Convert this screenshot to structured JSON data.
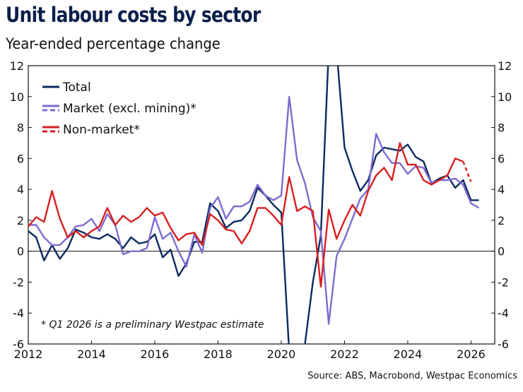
{
  "title": "Unit labour costs by sector",
  "subtitle": "Year-ended percentage change",
  "source": "Source: ABS, Macrobond, Westpac Economics",
  "chart_data": {
    "type": "line",
    "title": "Unit labour costs by sector",
    "subtitle": "Year-ended percentage change",
    "ylim": [
      -6,
      12
    ],
    "xlim": [
      2012,
      2026.75
    ],
    "yticks": [
      "-6",
      "-4",
      "-2",
      "0",
      "2",
      "4",
      "6",
      "8",
      "10",
      "12"
    ],
    "xticks": [
      "2012",
      "2014",
      "2016",
      "2018",
      "2020",
      "2022",
      "2024",
      "2026"
    ],
    "note": "* Q1 2026 is a preliminary Westpac estimate",
    "legend_position": "top-left",
    "series": [
      {
        "name": "Total",
        "color": "#0b2a5f",
        "points": [
          [
            2012.0,
            1.3
          ],
          [
            2012.25,
            0.9
          ],
          [
            2012.5,
            -0.6
          ],
          [
            2012.75,
            0.4
          ],
          [
            2013.0,
            -0.5
          ],
          [
            2013.25,
            0.2
          ],
          [
            2013.5,
            1.4
          ],
          [
            2013.75,
            1.2
          ],
          [
            2014.0,
            0.9
          ],
          [
            2014.25,
            0.8
          ],
          [
            2014.5,
            1.1
          ],
          [
            2014.75,
            0.8
          ],
          [
            2015.0,
            0.2
          ],
          [
            2015.25,
            0.9
          ],
          [
            2015.5,
            0.5
          ],
          [
            2015.75,
            0.6
          ],
          [
            2016.0,
            1.1
          ],
          [
            2016.25,
            -0.4
          ],
          [
            2016.5,
            0.1
          ],
          [
            2016.75,
            -1.6
          ],
          [
            2017.0,
            -0.8
          ],
          [
            2017.25,
            0.6
          ],
          [
            2017.5,
            0.6
          ],
          [
            2017.75,
            3.1
          ],
          [
            2018.0,
            2.6
          ],
          [
            2018.25,
            1.5
          ],
          [
            2018.5,
            1.9
          ],
          [
            2018.75,
            2.0
          ],
          [
            2019.0,
            2.6
          ],
          [
            2019.25,
            4.1
          ],
          [
            2019.5,
            3.6
          ],
          [
            2019.75,
            3.0
          ],
          [
            2020.0,
            2.5
          ],
          [
            2020.25,
            -6.5
          ],
          [
            2020.5,
            -7.5
          ],
          [
            2020.75,
            -6.0
          ],
          [
            2021.0,
            -2.0
          ],
          [
            2021.25,
            1.0
          ],
          [
            2021.5,
            13.0
          ],
          [
            2021.75,
            13.0
          ],
          [
            2022.0,
            6.7
          ],
          [
            2022.25,
            5.2
          ],
          [
            2022.5,
            3.9
          ],
          [
            2022.75,
            4.6
          ],
          [
            2023.0,
            6.2
          ],
          [
            2023.25,
            6.7
          ],
          [
            2023.5,
            6.6
          ],
          [
            2023.75,
            6.5
          ],
          [
            2024.0,
            6.9
          ],
          [
            2024.25,
            6.1
          ],
          [
            2024.5,
            5.8
          ],
          [
            2024.75,
            4.4
          ],
          [
            2025.0,
            4.7
          ],
          [
            2025.25,
            4.9
          ],
          [
            2025.5,
            4.1
          ],
          [
            2025.75,
            4.6
          ],
          [
            2026.0,
            3.3
          ],
          [
            2026.25,
            3.3
          ]
        ]
      },
      {
        "name": "Market (excl. mining)*",
        "color": "#7e6bd0",
        "points": [
          [
            2012.0,
            1.7
          ],
          [
            2012.25,
            1.7
          ],
          [
            2012.5,
            0.9
          ],
          [
            2012.75,
            0.4
          ],
          [
            2013.0,
            0.4
          ],
          [
            2013.25,
            0.9
          ],
          [
            2013.5,
            1.6
          ],
          [
            2013.75,
            1.7
          ],
          [
            2014.0,
            2.1
          ],
          [
            2014.25,
            1.3
          ],
          [
            2014.5,
            2.4
          ],
          [
            2014.75,
            1.7
          ],
          [
            2015.0,
            -0.2
          ],
          [
            2015.25,
            0.0
          ],
          [
            2015.5,
            0.0
          ],
          [
            2015.75,
            0.2
          ],
          [
            2016.0,
            2.2
          ],
          [
            2016.25,
            0.8
          ],
          [
            2016.5,
            1.2
          ],
          [
            2016.75,
            0.0
          ],
          [
            2017.0,
            -1.0
          ],
          [
            2017.25,
            1.1
          ],
          [
            2017.5,
            -0.1
          ],
          [
            2017.75,
            2.8
          ],
          [
            2018.0,
            3.5
          ],
          [
            2018.25,
            2.1
          ],
          [
            2018.5,
            2.9
          ],
          [
            2018.75,
            2.9
          ],
          [
            2019.0,
            3.2
          ],
          [
            2019.25,
            4.3
          ],
          [
            2019.5,
            3.6
          ],
          [
            2019.75,
            3.3
          ],
          [
            2020.0,
            3.6
          ],
          [
            2020.25,
            10.0
          ],
          [
            2020.5,
            5.9
          ],
          [
            2020.75,
            4.4
          ],
          [
            2021.0,
            2.2
          ],
          [
            2021.25,
            1.3
          ],
          [
            2021.5,
            -4.7
          ],
          [
            2021.75,
            -0.3
          ],
          [
            2022.0,
            0.8
          ],
          [
            2022.25,
            2.1
          ],
          [
            2022.5,
            3.4
          ],
          [
            2022.75,
            4.0
          ],
          [
            2023.0,
            7.6
          ],
          [
            2023.25,
            6.4
          ],
          [
            2023.5,
            5.7
          ],
          [
            2023.75,
            5.7
          ],
          [
            2024.0,
            5.0
          ],
          [
            2024.25,
            5.5
          ],
          [
            2024.5,
            5.4
          ],
          [
            2024.75,
            4.4
          ],
          [
            2025.0,
            4.6
          ],
          [
            2025.25,
            4.6
          ],
          [
            2025.5,
            4.7
          ],
          [
            2025.75,
            4.3
          ],
          [
            2026.0,
            3.1
          ],
          [
            2026.25,
            2.8
          ]
        ]
      },
      {
        "name": "Non-market*",
        "color": "#d61f1f",
        "points": [
          [
            2012.0,
            1.6
          ],
          [
            2012.25,
            2.2
          ],
          [
            2012.5,
            1.9
          ],
          [
            2012.75,
            3.9
          ],
          [
            2013.0,
            2.1
          ],
          [
            2013.25,
            0.9
          ],
          [
            2013.5,
            1.3
          ],
          [
            2013.75,
            0.9
          ],
          [
            2014.0,
            1.3
          ],
          [
            2014.25,
            1.6
          ],
          [
            2014.5,
            2.8
          ],
          [
            2014.75,
            1.7
          ],
          [
            2015.0,
            2.3
          ],
          [
            2015.25,
            1.9
          ],
          [
            2015.5,
            2.2
          ],
          [
            2015.75,
            2.8
          ],
          [
            2016.0,
            2.3
          ],
          [
            2016.25,
            2.5
          ],
          [
            2016.5,
            1.5
          ],
          [
            2016.75,
            0.7
          ],
          [
            2017.0,
            1.1
          ],
          [
            2017.25,
            1.2
          ],
          [
            2017.5,
            0.4
          ],
          [
            2017.75,
            2.4
          ],
          [
            2018.0,
            2.0
          ],
          [
            2018.25,
            1.4
          ],
          [
            2018.5,
            1.3
          ],
          [
            2018.75,
            0.5
          ],
          [
            2019.0,
            1.3
          ],
          [
            2019.25,
            2.8
          ],
          [
            2019.5,
            2.8
          ],
          [
            2019.75,
            2.3
          ],
          [
            2020.0,
            1.7
          ],
          [
            2020.25,
            4.8
          ],
          [
            2020.5,
            2.6
          ],
          [
            2020.75,
            2.9
          ],
          [
            2021.0,
            2.6
          ],
          [
            2021.25,
            -2.3
          ],
          [
            2021.5,
            2.7
          ],
          [
            2021.75,
            0.8
          ],
          [
            2022.0,
            2.0
          ],
          [
            2022.25,
            3.0
          ],
          [
            2022.5,
            2.3
          ],
          [
            2022.75,
            3.9
          ],
          [
            2023.0,
            4.9
          ],
          [
            2023.25,
            5.4
          ],
          [
            2023.5,
            4.6
          ],
          [
            2023.75,
            7.0
          ],
          [
            2024.0,
            5.6
          ],
          [
            2024.25,
            5.6
          ],
          [
            2024.5,
            4.6
          ],
          [
            2024.75,
            4.3
          ],
          [
            2025.0,
            4.6
          ],
          [
            2025.25,
            4.9
          ],
          [
            2025.5,
            6.0
          ],
          [
            2025.75,
            5.8
          ],
          [
            2026.0,
            4.5
          ]
        ],
        "dashed_from_x": 2025.75
      }
    ]
  }
}
